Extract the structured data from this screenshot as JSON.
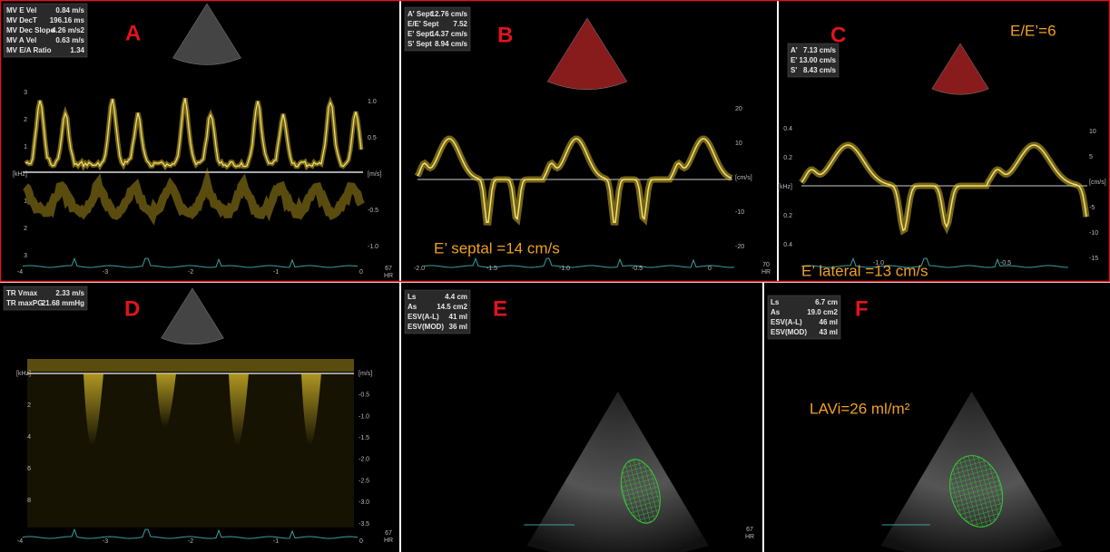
{
  "panels": [
    {
      "label": "A",
      "measurements": [
        [
          "MV E Vel",
          "0.84 m/s"
        ],
        [
          "MV DecT",
          "196.16 ms"
        ],
        [
          "MV Dec Slope",
          "4.26 m/s2"
        ],
        [
          "MV A Vel",
          "0.63 m/s"
        ],
        [
          "MV E/A Ratio",
          "1.34"
        ]
      ],
      "annotations": [],
      "right_ticks": [
        "1.0",
        "0.5",
        "[m/s]",
        "-0.5",
        "-1.0"
      ],
      "left_ticks": [
        "3",
        "2",
        "1",
        "[kHz]",
        "1",
        "2",
        "3"
      ],
      "bottom_ticks": [
        "-4",
        "-3",
        "-2",
        "-1",
        "0"
      ],
      "hr": [
        "67",
        "HR"
      ]
    },
    {
      "label": "B",
      "measurements": [
        [
          "A' Sept",
          "12.76 cm/s"
        ],
        [
          "E/E' Sept",
          "7.52"
        ],
        [
          "E' Sept",
          "14.37 cm/s"
        ],
        [
          "S' Sept",
          "8.94 cm/s"
        ]
      ],
      "annotations": [
        "E’ septal =14 cm/s"
      ],
      "right_ticks": [
        "20",
        "10",
        "[cm/s]",
        "-10",
        "-20"
      ],
      "left_ticks": [],
      "bottom_ticks": [
        "-2.0",
        "-1.5",
        "-1.0",
        "-0.5",
        "0"
      ],
      "hr": [
        "70",
        "HR"
      ]
    },
    {
      "label": "C",
      "measurements": [
        [
          "A'",
          "7.13 cm/s"
        ],
        [
          "E'",
          "13.00 cm/s"
        ],
        [
          "S'",
          "8.43 cm/s"
        ]
      ],
      "annotations": [
        "E/E’=6",
        "E’ lateral =13 cm/s"
      ],
      "right_ticks": [
        "10",
        "5",
        "[cm/s]",
        "-5",
        "-10",
        "-15"
      ],
      "left_ticks": [
        "0.4",
        "0.2",
        "[kHz]",
        "0.2",
        "0.4"
      ],
      "bottom_ticks": [
        "-1.0",
        "-0.5"
      ],
      "hr": []
    },
    {
      "label": "D",
      "measurements": [
        [
          "TR Vmax",
          "2.33 m/s"
        ],
        [
          "TR maxPG",
          "21.68 mmHg"
        ]
      ],
      "annotations": [],
      "right_ticks": [
        "[m/s]",
        "-0.5",
        "-1.0",
        "-1.5",
        "-2.0",
        "-2.5",
        "-3.0",
        "-3.5"
      ],
      "left_ticks": [
        "[kHz]",
        "2",
        "4",
        "6",
        "8"
      ],
      "bottom_ticks": [
        "-4",
        "-3",
        "-2",
        "-1",
        "0"
      ],
      "hr": [
        "67",
        "HR"
      ]
    },
    {
      "label": "E",
      "measurements": [
        [
          "Ls",
          "4.4 cm"
        ],
        [
          "As",
          "14.5 cm2"
        ],
        [
          "ESV(A-L)",
          "41 ml"
        ],
        [
          "ESV(MOD)",
          "36 ml"
        ]
      ],
      "annotations": [],
      "right_ticks": [],
      "left_ticks": [],
      "bottom_ticks": [],
      "hr": [
        "67",
        "HR"
      ]
    },
    {
      "label": "F",
      "measurements": [
        [
          "Ls",
          "6.7 cm"
        ],
        [
          "As",
          "19.0 cm2"
        ],
        [
          "ESV(A-L)",
          "46 ml"
        ],
        [
          "ESV(MOD)",
          "43 ml"
        ]
      ],
      "annotations": [
        "LAVi=26  ml/m²"
      ],
      "right_ticks": [],
      "left_ticks": [],
      "bottom_ticks": [],
      "hr": []
    }
  ]
}
